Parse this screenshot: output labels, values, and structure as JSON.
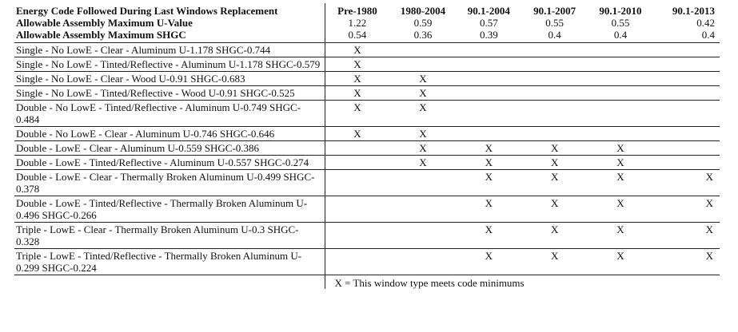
{
  "header": {
    "row_labels": [
      "Energy Code Followed During Last Windows Replacement",
      "Allowable Assembly Maximum U-Value",
      "Allowable Assembly Maximum SHGC"
    ],
    "codes": [
      "Pre-1980",
      "1980-2004",
      "90.1-2004",
      "90.1-2007",
      "90.1-2010",
      "90.1-2013"
    ],
    "u_values": [
      "1.22",
      "0.59",
      "0.57",
      "0.55",
      "0.55",
      "0.42"
    ],
    "shgc_values": [
      "0.54",
      "0.36",
      "0.39",
      "0.4",
      "0.4",
      "0.4"
    ]
  },
  "mark": "X",
  "rows": [
    {
      "label": "Single - No LowE - Clear - Aluminum  U-1.178 SHGC-0.744",
      "marks": [
        true,
        false,
        false,
        false,
        false,
        false
      ]
    },
    {
      "label": "Single - No LowE - Tinted/Reflective - Aluminum  U-1.178 SHGC-0.579",
      "marks": [
        true,
        false,
        false,
        false,
        false,
        false
      ]
    },
    {
      "label": "Single - No LowE - Clear - Wood  U-0.91 SHGC-0.683",
      "marks": [
        true,
        true,
        false,
        false,
        false,
        false
      ]
    },
    {
      "label": "Single - No LowE - Tinted/Reflective - Wood  U-0.91 SHGC-0.525",
      "marks": [
        true,
        true,
        false,
        false,
        false,
        false
      ]
    },
    {
      "label": "Double - No LowE - Tinted/Reflective - Aluminum  U-0.749 SHGC-0.484",
      "marks": [
        true,
        true,
        false,
        false,
        false,
        false
      ]
    },
    {
      "label": "Double - No LowE - Clear - Aluminum  U-0.746 SHGC-0.646",
      "marks": [
        true,
        true,
        false,
        false,
        false,
        false
      ]
    },
    {
      "label": "Double - LowE - Clear - Aluminum  U-0.559 SHGC-0.386",
      "marks": [
        false,
        true,
        true,
        true,
        true,
        false
      ]
    },
    {
      "label": "Double - LowE - Tinted/Reflective - Aluminum  U-0.557 SHGC-0.274",
      "marks": [
        false,
        true,
        true,
        true,
        true,
        false
      ]
    },
    {
      "label": "Double - LowE - Clear - Thermally Broken Aluminum  U-0.499 SHGC-0.378",
      "marks": [
        false,
        false,
        true,
        true,
        true,
        true
      ]
    },
    {
      "label": "Double - LowE - Tinted/Reflective - Thermally Broken Aluminum  U-0.496 SHGC-0.266",
      "marks": [
        false,
        false,
        true,
        true,
        true,
        true
      ]
    },
    {
      "label": "Triple - LowE - Clear - Thermally Broken Aluminum  U-0.3 SHGC-0.328",
      "marks": [
        false,
        false,
        true,
        true,
        true,
        true
      ]
    },
    {
      "label": "Triple - LowE - Tinted/Reflective - Thermally Broken Aluminum  U-0.299 SHGC-0.224",
      "marks": [
        false,
        false,
        true,
        true,
        true,
        true
      ]
    }
  ],
  "footnote": "X = This window type meets code minimums"
}
